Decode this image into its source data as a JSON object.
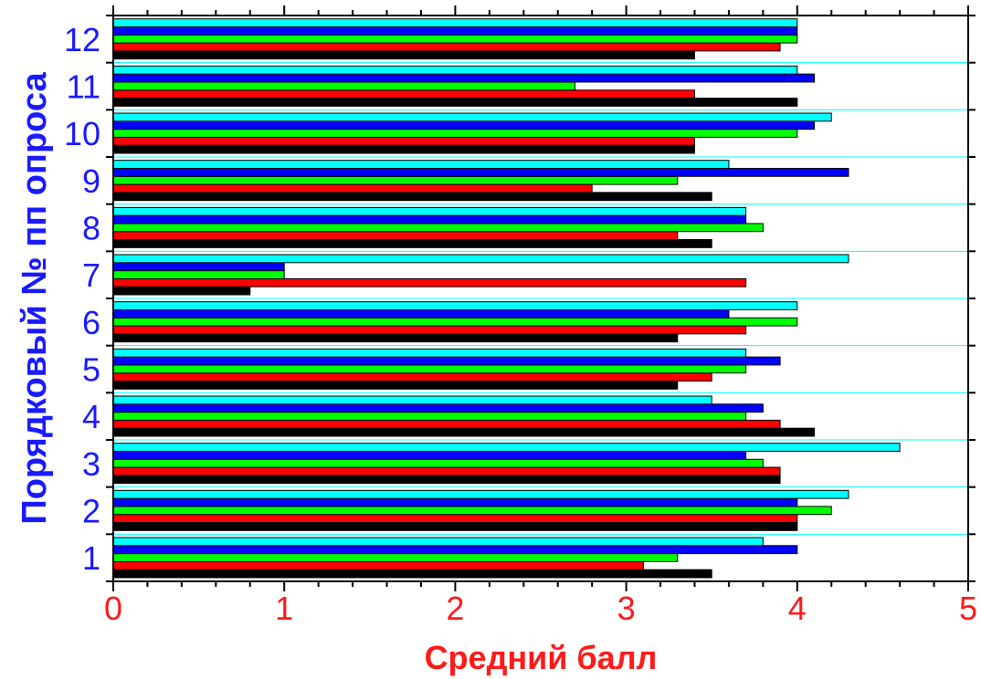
{
  "chart_data": {
    "type": "bar",
    "orientation": "horizontal",
    "categories": [
      "1",
      "2",
      "3",
      "4",
      "5",
      "6",
      "7",
      "8",
      "9",
      "10",
      "11",
      "12"
    ],
    "series": [
      {
        "color": "#000000",
        "values": [
          3.5,
          4.0,
          3.9,
          4.1,
          3.3,
          3.3,
          0.8,
          3.5,
          3.5,
          3.4,
          4.0,
          3.4
        ]
      },
      {
        "color": "#ff0000",
        "values": [
          3.1,
          4.0,
          3.9,
          3.9,
          3.5,
          3.7,
          3.7,
          3.3,
          2.8,
          3.4,
          3.4,
          3.9
        ]
      },
      {
        "color": "#00ff00",
        "values": [
          3.3,
          4.2,
          3.8,
          3.7,
          3.7,
          4.0,
          1.0,
          3.8,
          3.3,
          4.0,
          2.7,
          4.0
        ]
      },
      {
        "color": "#0000ff",
        "values": [
          4.0,
          4.0,
          3.7,
          3.8,
          3.9,
          3.6,
          1.0,
          3.7,
          4.3,
          4.1,
          4.1,
          4.0
        ]
      },
      {
        "color": "#00ffff",
        "values": [
          3.8,
          4.3,
          4.6,
          3.5,
          3.7,
          4.0,
          4.3,
          3.7,
          3.6,
          4.2,
          4.0,
          4.0
        ]
      }
    ],
    "xlabel": "Средний балл",
    "ylabel": "Порядковый № пп опроса",
    "xlim": [
      0,
      5
    ],
    "xticks": [
      "0",
      "1",
      "2",
      "3",
      "4",
      "5"
    ],
    "grid": "horizontal separators between groups",
    "legend": "none"
  }
}
